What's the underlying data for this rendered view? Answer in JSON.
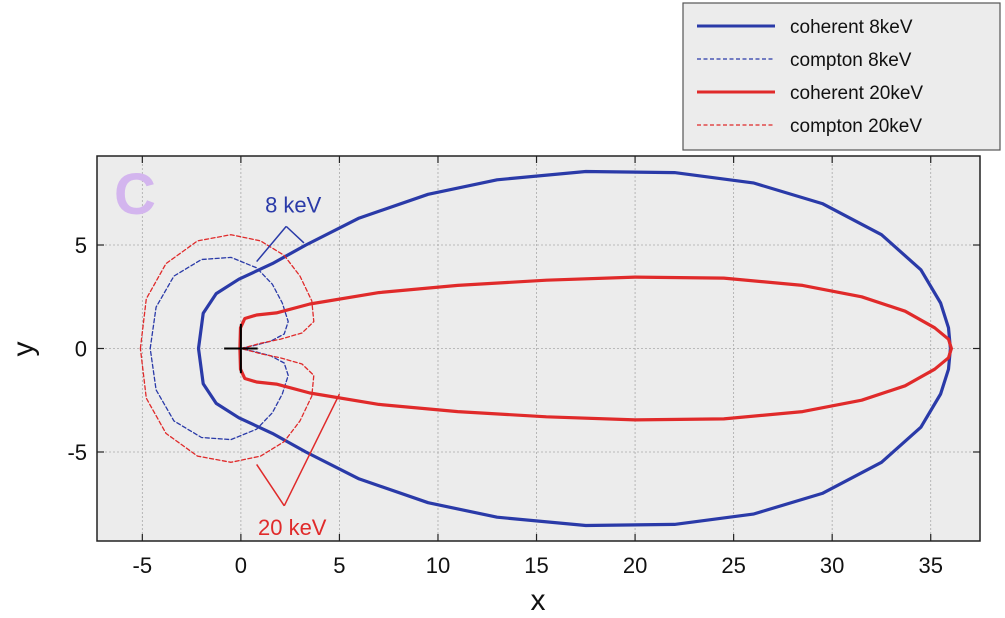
{
  "chart_data": {
    "type": "line",
    "title": "",
    "panel_letter": "C",
    "xlabel": "x",
    "ylabel": "y",
    "xlim": [
      -7.3,
      37.5
    ],
    "ylim": [
      -9.3,
      9.3
    ],
    "xticks": [
      -5,
      0,
      5,
      10,
      15,
      20,
      25,
      30,
      35
    ],
    "yticks": [
      -5,
      0,
      5
    ],
    "grid": true,
    "legend_position": "above-right",
    "colors": {
      "blue": "#2a3aa8",
      "red": "#e02a2a",
      "panel_letter": "#d3b5ee",
      "plot_bg": "#ececec",
      "grid": "#a9a9a9"
    },
    "series": [
      {
        "name": "coherent 8keV",
        "color": "#2a3aa8",
        "dash": "solid",
        "x": [
          -2.15,
          -1.91,
          -1.25,
          -0.1,
          1.6,
          3.3,
          6.0,
          9.5,
          13.0,
          17.5,
          22.0,
          26.0,
          29.5,
          32.5,
          34.5,
          35.5,
          35.9,
          36.0
        ],
        "y": [
          0,
          1.7,
          2.65,
          3.35,
          4.1,
          5.0,
          6.3,
          7.45,
          8.15,
          8.55,
          8.5,
          8.0,
          7.0,
          5.5,
          3.8,
          2.2,
          1.0,
          0
        ]
      },
      {
        "name": "compton 8keV",
        "color": "#2a3aa8",
        "dash": "dashed",
        "x": [
          -4.6,
          -4.3,
          -3.4,
          -2.0,
          -0.5,
          0.8,
          1.6,
          2.1,
          2.4,
          2.2,
          1.5,
          0.7,
          0.2,
          0.0
        ],
        "y": [
          0,
          2.0,
          3.5,
          4.3,
          4.4,
          3.9,
          3.1,
          2.2,
          1.3,
          0.7,
          0.35,
          0.15,
          0.05,
          0
        ]
      },
      {
        "name": "coherent 20keV",
        "color": "#e02a2a",
        "dash": "solid",
        "x": [
          -0.05,
          -0.02,
          0.2,
          0.8,
          1.8,
          3.5,
          7.0,
          11.0,
          15.5,
          20.0,
          24.5,
          28.5,
          31.5,
          33.7,
          35.2,
          35.9,
          36.05
        ],
        "y": [
          0,
          1.0,
          1.45,
          1.62,
          1.72,
          2.15,
          2.7,
          3.05,
          3.3,
          3.45,
          3.4,
          3.05,
          2.5,
          1.8,
          1.0,
          0.45,
          0
        ]
      },
      {
        "name": "compton 20keV",
        "color": "#e02a2a",
        "dash": "dashed",
        "x": [
          -5.1,
          -4.8,
          -3.8,
          -2.2,
          -0.5,
          1.0,
          2.2,
          3.0,
          3.6,
          3.7,
          3.1,
          2.0,
          1.0,
          0.35,
          0.0
        ],
        "y": [
          0,
          2.4,
          4.1,
          5.2,
          5.5,
          5.2,
          4.5,
          3.5,
          2.3,
          1.3,
          0.75,
          0.45,
          0.25,
          0.08,
          0
        ]
      }
    ],
    "symmetric_about_x_axis": true,
    "annotations": [
      {
        "text": "8 keV",
        "color": "#2a3aa8",
        "pointer_apex": [
          2.3,
          5.9
        ],
        "pointer_targets": [
          [
            0.8,
            4.2
          ],
          [
            3.2,
            5.1
          ]
        ]
      },
      {
        "text": "20 keV",
        "color": "#e02a2a",
        "pointer_apex": [
          2.2,
          -7.6
        ],
        "pointer_targets": [
          [
            0.8,
            -5.6
          ],
          [
            5.0,
            -2.2
          ]
        ]
      }
    ],
    "origin_marker": {
      "x": 0,
      "y": 0,
      "half_length": 0.85
    }
  }
}
